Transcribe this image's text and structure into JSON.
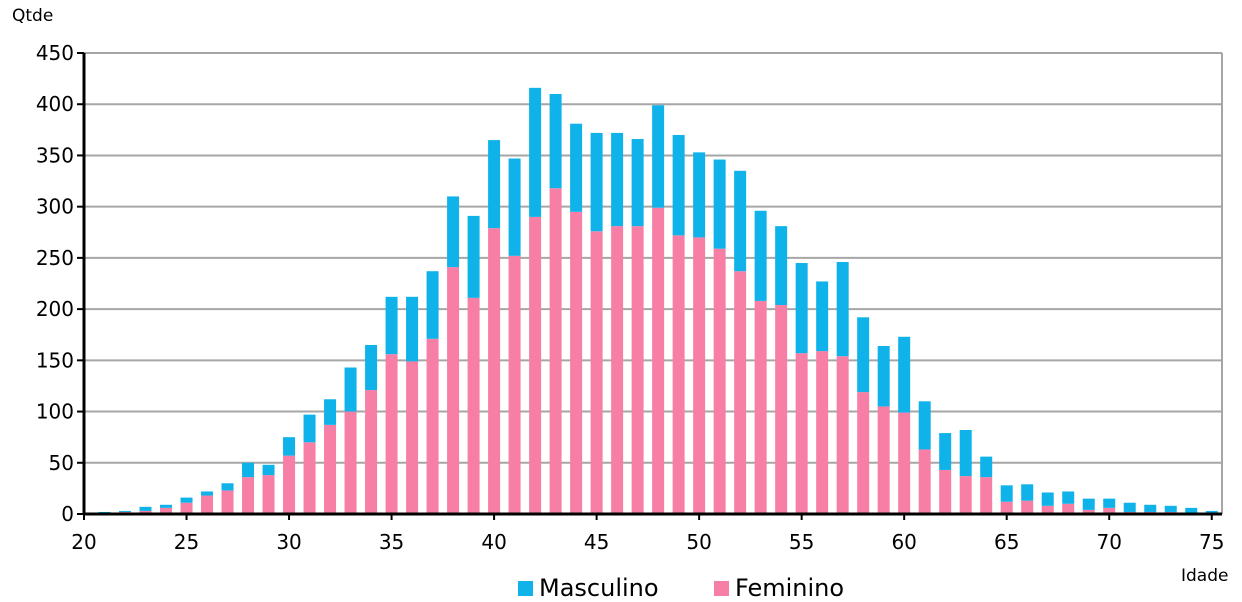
{
  "chart_data": {
    "type": "bar",
    "stacked": true,
    "title": "",
    "ylabel": "Qtde",
    "xlabel": "Idade",
    "ylim": [
      0,
      450
    ],
    "yticks": [
      0,
      50,
      100,
      150,
      200,
      250,
      300,
      350,
      400,
      450
    ],
    "xticks": [
      20,
      25,
      30,
      35,
      40,
      45,
      50,
      55,
      60,
      65,
      70,
      75
    ],
    "x": [
      21,
      22,
      23,
      24,
      25,
      26,
      27,
      28,
      29,
      30,
      31,
      32,
      33,
      34,
      35,
      36,
      37,
      38,
      39,
      40,
      41,
      42,
      43,
      44,
      45,
      46,
      47,
      48,
      49,
      50,
      51,
      52,
      53,
      54,
      55,
      56,
      57,
      58,
      59,
      60,
      61,
      62,
      63,
      64,
      65,
      66,
      67,
      68,
      69,
      70,
      71,
      72,
      73,
      74,
      75
    ],
    "grid": true,
    "legend_position": "bottom",
    "series": [
      {
        "name": "Feminino",
        "color": "#f77fa6",
        "values": [
          1,
          2,
          3,
          6,
          11,
          18,
          23,
          36,
          38,
          57,
          70,
          87,
          100,
          121,
          156,
          149,
          171,
          241,
          211,
          279,
          252,
          290,
          318,
          295,
          276,
          281,
          281,
          299,
          272,
          270,
          259,
          237,
          208,
          204,
          157,
          159,
          154,
          119,
          105,
          99,
          63,
          43,
          37,
          36,
          12,
          13,
          8,
          10,
          4,
          6,
          2,
          2,
          2,
          1,
          0
        ]
      },
      {
        "name": "Masculino",
        "color": "#0fb3ea",
        "values": [
          1,
          1,
          4,
          3,
          5,
          4,
          7,
          14,
          10,
          18,
          27,
          25,
          43,
          44,
          56,
          63,
          66,
          69,
          80,
          86,
          95,
          126,
          92,
          86,
          96,
          91,
          85,
          100,
          98,
          83,
          87,
          98,
          88,
          77,
          88,
          68,
          92,
          73,
          59,
          74,
          47,
          36,
          45,
          20,
          16,
          16,
          13,
          12,
          11,
          9,
          9,
          7,
          6,
          5,
          3
        ]
      }
    ]
  }
}
